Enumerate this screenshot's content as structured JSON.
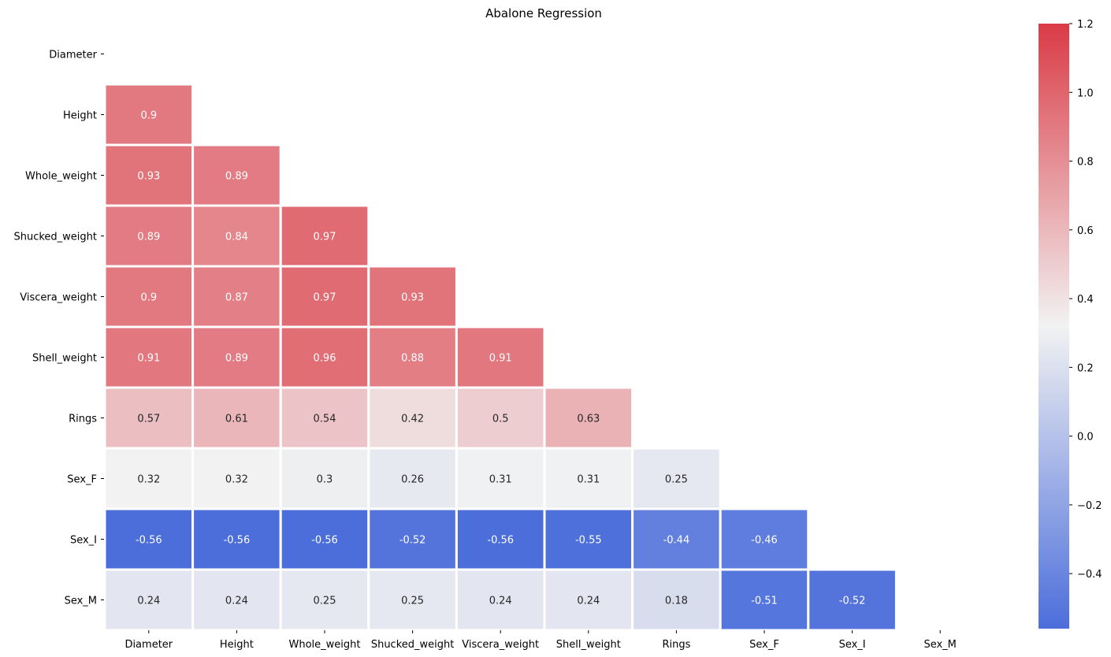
{
  "chart_data": {
    "type": "heatmap",
    "title": "Abalone Regression",
    "xlabel": "",
    "ylabel": "",
    "rows": [
      "Diameter",
      "Height",
      "Whole_weight",
      "Shucked_weight",
      "Viscera_weight",
      "Shell_weight",
      "Rings",
      "Sex_F",
      "Sex_I",
      "Sex_M"
    ],
    "columns": [
      "Diameter",
      "Height",
      "Whole_weight",
      "Shucked_weight",
      "Viscera_weight",
      "Shell_weight",
      "Rings",
      "Sex_F",
      "Sex_I",
      "Sex_M"
    ],
    "mask": "upper-triangle-including-diagonal",
    "values": [
      [],
      [
        0.9
      ],
      [
        0.93,
        0.89
      ],
      [
        0.89,
        0.84,
        0.97
      ],
      [
        0.9,
        0.87,
        0.97,
        0.93
      ],
      [
        0.91,
        0.89,
        0.96,
        0.88,
        0.91
      ],
      [
        0.57,
        0.61,
        0.54,
        0.42,
        0.5,
        0.63
      ],
      [
        0.32,
        0.32,
        0.3,
        0.26,
        0.31,
        0.31,
        0.25
      ],
      [
        -0.56,
        -0.56,
        -0.56,
        -0.52,
        -0.56,
        -0.55,
        -0.44,
        -0.46
      ],
      [
        0.24,
        0.24,
        0.25,
        0.25,
        0.24,
        0.24,
        0.18,
        -0.51,
        -0.52
      ]
    ],
    "value_labels": [
      [],
      [
        "0.9"
      ],
      [
        "0.93",
        "0.89"
      ],
      [
        "0.89",
        "0.84",
        "0.97"
      ],
      [
        "0.9",
        "0.87",
        "0.97",
        "0.93"
      ],
      [
        "0.91",
        "0.89",
        "0.96",
        "0.88",
        "0.91"
      ],
      [
        "0.57",
        "0.61",
        "0.54",
        "0.42",
        "0.5",
        "0.63"
      ],
      [
        "0.32",
        "0.32",
        "0.3",
        "0.26",
        "0.31",
        "0.31",
        "0.25"
      ],
      [
        "-0.56",
        "-0.56",
        "-0.56",
        "-0.52",
        "-0.56",
        "-0.55",
        "-0.44",
        "-0.46"
      ],
      [
        "0.24",
        "0.24",
        "0.25",
        "0.25",
        "0.24",
        "0.24",
        "0.18",
        "-0.51",
        "-0.52"
      ]
    ],
    "colorbar": {
      "vmin": -0.56,
      "vmax": 1.2,
      "center": 0.32,
      "ticks": [
        -0.4,
        -0.2,
        0.0,
        0.2,
        0.4,
        0.6,
        0.8,
        1.0,
        1.2
      ],
      "tick_labels": [
        "−0.4",
        "−0.2",
        "0.0",
        "0.2",
        "0.4",
        "0.6",
        "0.8",
        "1.0",
        "1.2"
      ],
      "low_color": "#4c6edb",
      "mid_color": "#f2f2f2",
      "high_color": "#da3b46"
    },
    "grid": true,
    "cell_line_color": "#ffffff"
  }
}
